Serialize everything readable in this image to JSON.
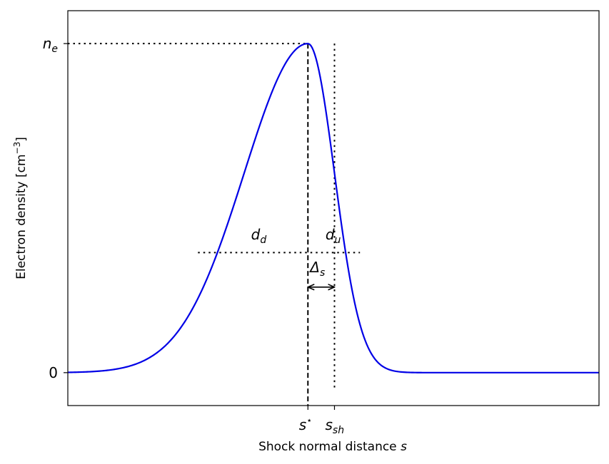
{
  "chart_data": {
    "type": "line",
    "title": "",
    "xlabel": "Shock normal distance",
    "xlabel_symbol": "s",
    "ylabel": "Electron density [cm",
    "ylabel_exp": "−3",
    "ylabel_close": "]",
    "xlim": [
      0,
      100
    ],
    "ylim": [
      -0.1,
      1.1
    ],
    "grid": false,
    "legend": "none",
    "x_ticks": [
      {
        "value": 45.2,
        "label": "s",
        "sup": "⋆"
      },
      {
        "value": 50.2,
        "label": "s",
        "sub": "sh"
      }
    ],
    "y_ticks": [
      {
        "value": 0,
        "label": "0"
      },
      {
        "value": 1,
        "label": "n",
        "sub": "e"
      }
    ],
    "series": [
      {
        "color": "#0000e6",
        "peak_x": 45.2,
        "peak_y": 1.0,
        "sigma_left": 12.0,
        "sigma_right": 5.0,
        "x_start": 0,
        "x_end": 100
      }
    ],
    "reference_lines": {
      "s_star": 45.2,
      "s_sh": 50.2,
      "half_level": 0.365,
      "half_left_x": 24.5,
      "half_right_x": 55.0,
      "arrow_y": 0.26
    },
    "annotations": [
      {
        "name": "dd",
        "base": "d",
        "sub": "d",
        "x": 34.5,
        "y": 0.405
      },
      {
        "name": "du",
        "base": "d",
        "sub": "u",
        "x": 48.5,
        "y": 0.405
      },
      {
        "name": "delta-s",
        "base": "Δ",
        "sub": "s",
        "x": 45.6,
        "y": 0.305
      }
    ],
    "colors": {
      "curve": "#0000e6",
      "axes": "#000000"
    }
  }
}
